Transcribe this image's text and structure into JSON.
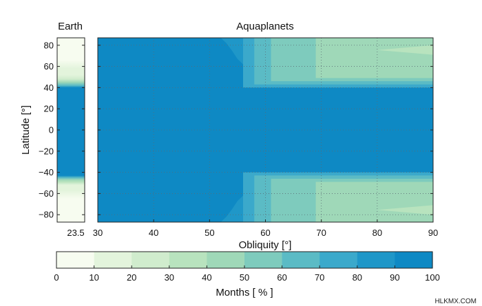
{
  "chart_data": [
    {
      "type": "heatmap",
      "title": "Earth",
      "ylabel": "Latitude [°]",
      "x_ticks": [
        "23.5"
      ],
      "y_ticks": [
        "80",
        "60",
        "40",
        "20",
        "0",
        "−20",
        "−40",
        "−60",
        "−80"
      ],
      "ylim": [
        -87,
        87
      ],
      "grid": false,
      "obliquity": 23.5,
      "profile": [
        {
          "lat": -87,
          "value": 2
        },
        {
          "lat": -75,
          "value": 3
        },
        {
          "lat": -65,
          "value": 5
        },
        {
          "lat": -57,
          "value": 10
        },
        {
          "lat": -52,
          "value": 18
        },
        {
          "lat": -49,
          "value": 30
        },
        {
          "lat": -47,
          "value": 45
        },
        {
          "lat": -45,
          "value": 65
        },
        {
          "lat": -43,
          "value": 95
        },
        {
          "lat": -41,
          "value": 100
        },
        {
          "lat": 38,
          "value": 100
        },
        {
          "lat": 40,
          "value": 92
        },
        {
          "lat": 42,
          "value": 60
        },
        {
          "lat": 45,
          "value": 42
        },
        {
          "lat": 48,
          "value": 28
        },
        {
          "lat": 52,
          "value": 18
        },
        {
          "lat": 58,
          "value": 10
        },
        {
          "lat": 66,
          "value": 6
        },
        {
          "lat": 87,
          "value": 3
        }
      ]
    },
    {
      "type": "heatmap",
      "title": "Aquaplanets",
      "xlabel": "Obliquity [°]",
      "x_ticks": [
        "30",
        "40",
        "50",
        "60",
        "70",
        "80",
        "90"
      ],
      "y_ticks": [
        "80",
        "60",
        "40",
        "20",
        "0",
        "−20",
        "−40",
        "−60",
        "−80"
      ],
      "xlim": [
        30,
        90
      ],
      "ylim": [
        -87,
        87
      ],
      "grid": true,
      "edge_latitude": [
        {
          "obliquity": 30,
          "lat": 87
        },
        {
          "obliquity": 52,
          "lat": 87
        },
        {
          "obliquity": 53,
          "lat": 82
        },
        {
          "obliquity": 54,
          "lat": 75
        },
        {
          "obliquity": 55,
          "lat": 67
        },
        {
          "obliquity": 56,
          "lat": 62
        },
        {
          "obliquity": 57,
          "lat": 58
        },
        {
          "obliquity": 58,
          "lat": 55
        },
        {
          "obliquity": 60,
          "lat": 51
        },
        {
          "obliquity": 62,
          "lat": 48
        },
        {
          "obliquity": 65,
          "lat": 45
        },
        {
          "obliquity": 68,
          "lat": 43
        },
        {
          "obliquity": 72,
          "lat": 42
        },
        {
          "obliquity": 78,
          "lat": 41
        },
        {
          "obliquity": 90,
          "lat": 41
        }
      ],
      "regions": [
        {
          "value": 70,
          "obliquity_range": [
            56,
            90
          ],
          "lat_range": [
            40,
            87
          ]
        },
        {
          "value": 60,
          "obliquity_range": [
            58,
            90
          ],
          "lat_range": [
            43,
            87
          ]
        },
        {
          "value": 50,
          "obliquity_range": [
            61,
            90
          ],
          "lat_range": [
            46,
            87
          ]
        },
        {
          "value": 40,
          "obliquity_range": [
            69,
            90
          ],
          "lat_range": [
            49,
            87
          ]
        },
        {
          "value": 30,
          "obliquity_range": [
            80,
            90
          ],
          "lat_range": [
            71,
            80
          ]
        }
      ]
    }
  ],
  "colorbar": {
    "label": "Months [ % ]",
    "ticks": [
      "0",
      "10",
      "20",
      "30",
      "40",
      "50",
      "60",
      "70",
      "80",
      "90",
      "100"
    ],
    "range": [
      0,
      100
    ],
    "colors": [
      "#f7fcf0",
      "#e3f4dc",
      "#d0eccd",
      "#b8e3be",
      "#9fd8b8",
      "#7ecbbd",
      "#5bbbc5",
      "#3ba9cb",
      "#1f97c8",
      "#0e89c4"
    ]
  },
  "watermark": "HLKMX.COM"
}
